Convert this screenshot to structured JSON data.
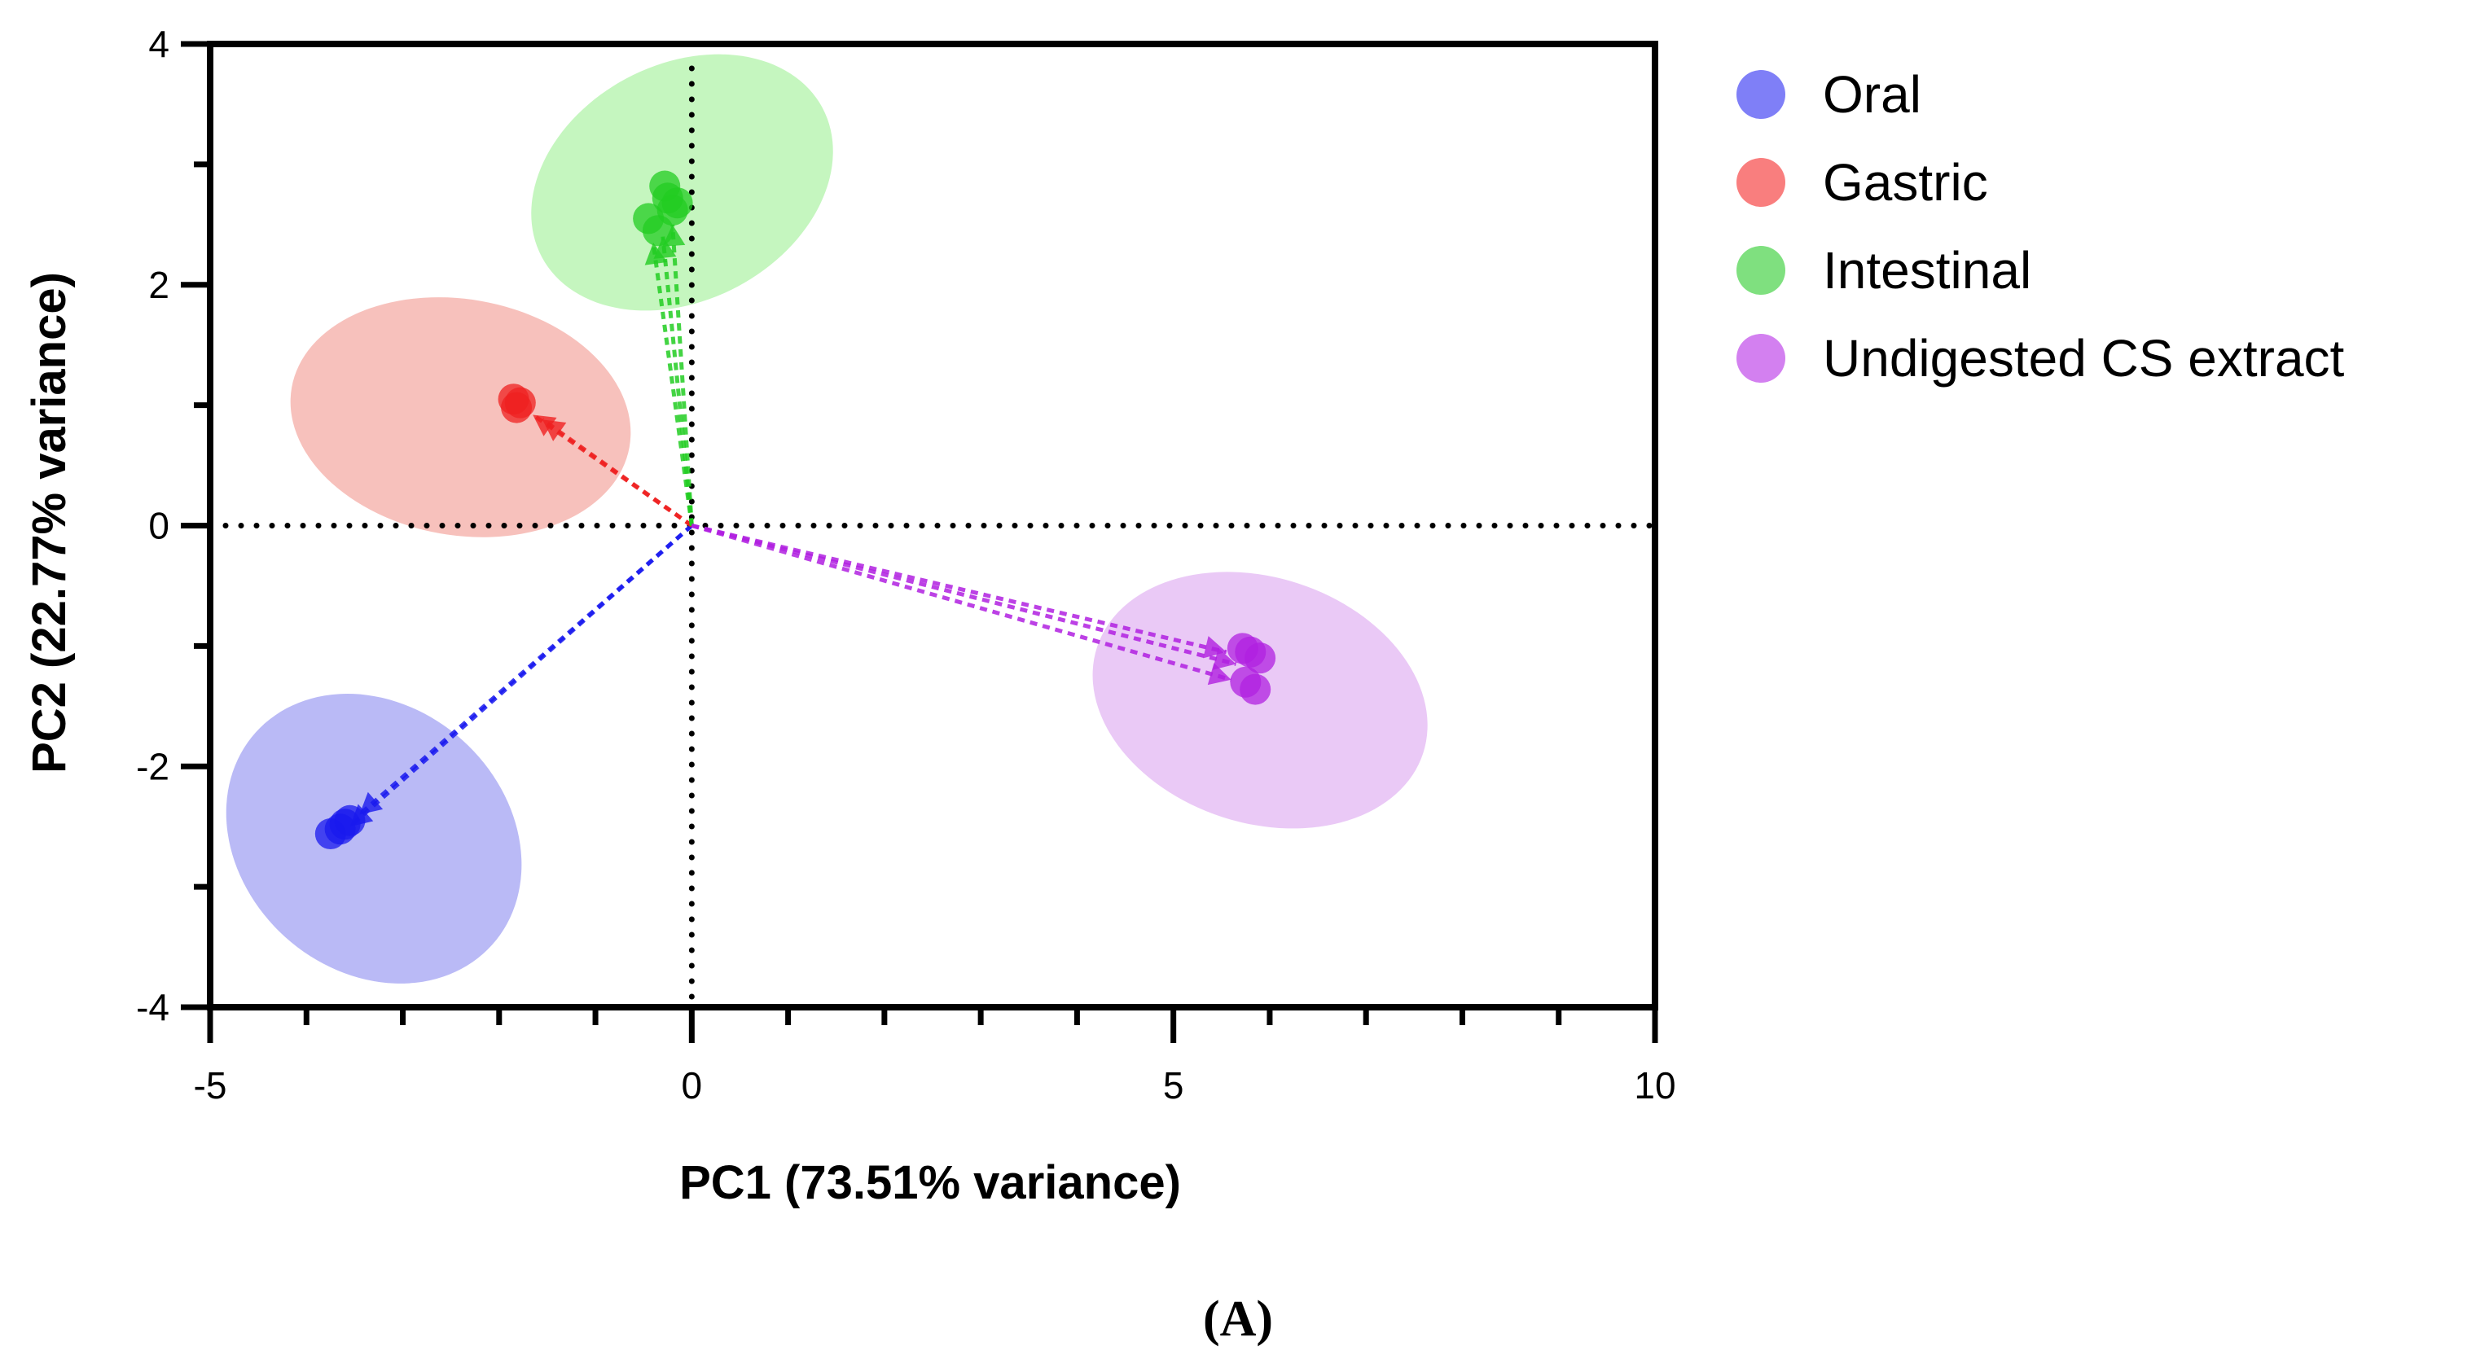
{
  "chart_data": {
    "type": "scatter",
    "title": "",
    "xlabel": "PC1 (73.51% variance)",
    "ylabel": "PC2 (22.77% variance)",
    "xlim": [
      -5,
      10
    ],
    "ylim": [
      -4,
      4
    ],
    "x_ticks": [
      -5,
      0,
      5,
      10
    ],
    "y_ticks": [
      4,
      2,
      0,
      -2,
      -4
    ],
    "x_tick_labels": [
      "-5",
      "0",
      "5",
      "10"
    ],
    "y_tick_labels": [
      "4",
      "2",
      "0",
      "-2",
      "-4"
    ],
    "legend_position": "right",
    "panel_label": "(A)",
    "reference_lines": {
      "x": 0,
      "y": 0,
      "style": "dotted"
    },
    "series": [
      {
        "name": "Oral",
        "color": "#1a1aee",
        "ellipse_color": "#b3b3f5",
        "legend_color": "#7f7ff7",
        "ellipse": {
          "cx": -3.3,
          "cy": -2.6,
          "rx": 1.65,
          "ry": 1.1,
          "angle_deg": 42
        },
        "points": [
          {
            "x": -3.75,
            "y": -2.56
          },
          {
            "x": -3.65,
            "y": -2.52
          },
          {
            "x": -3.6,
            "y": -2.48
          },
          {
            "x": -3.55,
            "y": -2.45
          }
        ],
        "loadings": [
          {
            "x": -3.55,
            "y": -2.5
          },
          {
            "x": -3.45,
            "y": -2.4
          }
        ]
      },
      {
        "name": "Gastric",
        "color": "#ef2020",
        "ellipse_color": "#f6bab5",
        "legend_color": "#f97e7e",
        "ellipse": {
          "cx": -2.4,
          "cy": 0.9,
          "rx": 1.78,
          "ry": 0.98,
          "angle_deg": 10
        },
        "points": [
          {
            "x": -1.85,
            "y": 1.05
          },
          {
            "x": -1.82,
            "y": 0.98
          },
          {
            "x": -1.78,
            "y": 1.02
          }
        ],
        "loadings": [
          {
            "x": -1.65,
            "y": 0.92
          },
          {
            "x": -1.55,
            "y": 0.88
          }
        ]
      },
      {
        "name": "Intestinal",
        "color": "#22cc22",
        "ellipse_color": "#bff5b8",
        "legend_color": "#7fe07f",
        "ellipse": {
          "cx": -0.1,
          "cy": 2.85,
          "rx": 1.65,
          "ry": 0.98,
          "angle_deg": -28
        },
        "points": [
          {
            "x": -0.28,
            "y": 2.82
          },
          {
            "x": -0.25,
            "y": 2.72
          },
          {
            "x": -0.2,
            "y": 2.62
          },
          {
            "x": -0.45,
            "y": 2.55
          },
          {
            "x": -0.35,
            "y": 2.45
          },
          {
            "x": -0.15,
            "y": 2.68
          }
        ],
        "loadings": [
          {
            "x": -0.4,
            "y": 2.35
          },
          {
            "x": -0.3,
            "y": 2.4
          },
          {
            "x": -0.2,
            "y": 2.5
          }
        ]
      },
      {
        "name": "Undigested CS extract",
        "color": "#b020e0",
        "ellipse_color": "#e8c3f5",
        "legend_color": "#d380f0",
        "ellipse": {
          "cx": 5.9,
          "cy": -1.45,
          "rx": 1.78,
          "ry": 1.02,
          "angle_deg": 18
        },
        "points": [
          {
            "x": 5.72,
            "y": -1.02
          },
          {
            "x": 5.8,
            "y": -1.05
          },
          {
            "x": 5.9,
            "y": -1.1
          },
          {
            "x": 5.75,
            "y": -1.3
          },
          {
            "x": 5.85,
            "y": -1.36
          }
        ],
        "loadings": [
          {
            "x": 5.55,
            "y": -1.05
          },
          {
            "x": 5.6,
            "y": -1.28
          },
          {
            "x": 5.65,
            "y": -1.15
          }
        ]
      }
    ]
  }
}
